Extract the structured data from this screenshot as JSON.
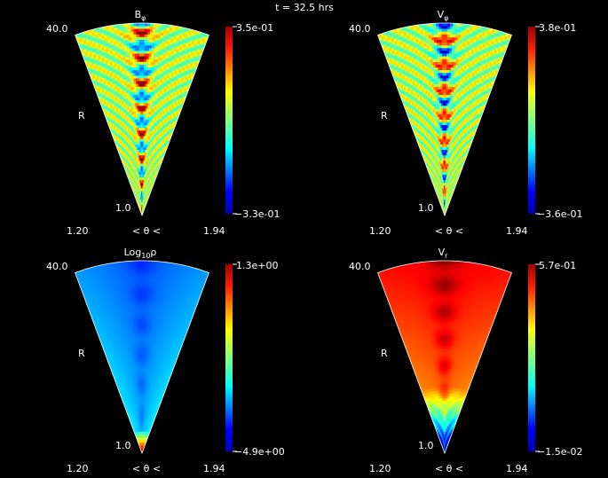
{
  "time_label": "t = 32.5 hrs",
  "panels": [
    {
      "title": "B",
      "title_sub": "φ",
      "cbar_max": "3.5e-01",
      "cbar_min": "−3.3e-01",
      "r_max": "40.0",
      "r_min": "1.0",
      "r_label": "R",
      "theta_min": "1.20",
      "theta_max": "1.94",
      "theta_expr": "<  θ  <",
      "field": "wave"
    },
    {
      "title": "V",
      "title_sub": "φ",
      "cbar_max": "3.8e-01",
      "cbar_min": "−3.6e-01",
      "r_max": "40.0",
      "r_min": "1.0",
      "r_label": "R",
      "theta_min": "1.20",
      "theta_max": "1.94",
      "theta_expr": "<  θ  <",
      "field": "wave"
    },
    {
      "title": "Log",
      "title_sub": "10",
      "title_tail": "ρ",
      "cbar_max": "1.3e+00",
      "cbar_min": "−4.9e+00",
      "r_max": "40.0",
      "r_min": "1.0",
      "r_label": "R",
      "theta_min": "1.20",
      "theta_max": "1.94",
      "theta_expr": "<  θ  <",
      "field": "density"
    },
    {
      "title": "V",
      "title_sub": "r",
      "cbar_max": "5.7e-01",
      "cbar_min": "−1.5e-02",
      "r_max": "40.0",
      "r_min": "1.0",
      "r_label": "R",
      "theta_min": "1.20",
      "theta_max": "1.94",
      "theta_expr": "<  θ  <",
      "field": "velocity"
    }
  ]
}
